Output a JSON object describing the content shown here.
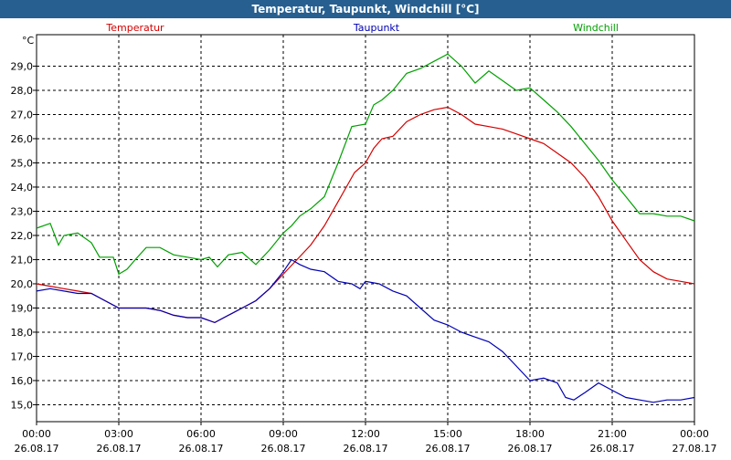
{
  "window": {
    "title": "Temperatur, Taupunkt, Windchill [°C]"
  },
  "chart_data": {
    "type": "line",
    "ylabel": "°C",
    "ylim": [
      14.3,
      30.3
    ],
    "yticks": [
      "15,0",
      "16,0",
      "17,0",
      "18,0",
      "19,0",
      "20,0",
      "21,0",
      "22,0",
      "23,0",
      "24,0",
      "25,0",
      "26,0",
      "27,0",
      "28,0",
      "29,0"
    ],
    "xticks": [
      {
        "time": "00:00",
        "date": "26.08.17"
      },
      {
        "time": "03:00",
        "date": "26.08.17"
      },
      {
        "time": "06:00",
        "date": "26.08.17"
      },
      {
        "time": "09:00",
        "date": "26.08.17"
      },
      {
        "time": "12:00",
        "date": "26.08.17"
      },
      {
        "time": "15:00",
        "date": "26.08.17"
      },
      {
        "time": "18:00",
        "date": "26.08.17"
      },
      {
        "time": "21:00",
        "date": "26.08.17"
      },
      {
        "time": "00:00",
        "date": "27.08.17"
      }
    ],
    "grid": true,
    "series": [
      {
        "name": "Temperatur",
        "color": "#d40000",
        "points": [
          [
            0,
            20.0
          ],
          [
            0.5,
            19.9
          ],
          [
            1,
            19.8
          ],
          [
            1.5,
            19.7
          ],
          [
            2,
            19.6
          ],
          [
            2.5,
            19.3
          ],
          [
            3,
            19.0
          ],
          [
            3.5,
            19.0
          ],
          [
            4,
            19.0
          ],
          [
            4.5,
            18.9
          ],
          [
            5,
            18.7
          ],
          [
            5.5,
            18.6
          ],
          [
            6,
            18.6
          ],
          [
            6.5,
            18.4
          ],
          [
            7,
            18.7
          ],
          [
            7.5,
            19.0
          ],
          [
            8,
            19.3
          ],
          [
            8.5,
            19.8
          ],
          [
            9,
            20.4
          ],
          [
            9.5,
            21.0
          ],
          [
            10,
            21.6
          ],
          [
            10.5,
            22.4
          ],
          [
            11,
            23.4
          ],
          [
            11.3,
            24.0
          ],
          [
            11.6,
            24.6
          ],
          [
            12,
            25.0
          ],
          [
            12.3,
            25.6
          ],
          [
            12.6,
            26.0
          ],
          [
            13,
            26.1
          ],
          [
            13.5,
            26.7
          ],
          [
            14,
            27.0
          ],
          [
            14.5,
            27.2
          ],
          [
            15,
            27.3
          ],
          [
            15.5,
            27.0
          ],
          [
            16,
            26.6
          ],
          [
            16.5,
            26.5
          ],
          [
            17,
            26.4
          ],
          [
            17.5,
            26.2
          ],
          [
            18,
            26.0
          ],
          [
            18.5,
            25.8
          ],
          [
            19,
            25.4
          ],
          [
            19.5,
            25.0
          ],
          [
            20,
            24.4
          ],
          [
            20.5,
            23.6
          ],
          [
            21,
            22.6
          ],
          [
            21.5,
            21.8
          ],
          [
            22,
            21.0
          ],
          [
            22.5,
            20.5
          ],
          [
            23,
            20.2
          ],
          [
            23.5,
            20.1
          ],
          [
            24,
            20.0
          ]
        ]
      },
      {
        "name": "Taupunkt",
        "color": "#0000b4",
        "points": [
          [
            0,
            19.7
          ],
          [
            0.5,
            19.8
          ],
          [
            1,
            19.7
          ],
          [
            1.5,
            19.6
          ],
          [
            2,
            19.6
          ],
          [
            2.5,
            19.3
          ],
          [
            3,
            19.0
          ],
          [
            3.5,
            19.0
          ],
          [
            4,
            19.0
          ],
          [
            4.5,
            18.9
          ],
          [
            5,
            18.7
          ],
          [
            5.5,
            18.6
          ],
          [
            6,
            18.6
          ],
          [
            6.5,
            18.4
          ],
          [
            7,
            18.7
          ],
          [
            7.5,
            19.0
          ],
          [
            8,
            19.3
          ],
          [
            8.5,
            19.8
          ],
          [
            9,
            20.5
          ],
          [
            9.3,
            21.0
          ],
          [
            9.6,
            20.8
          ],
          [
            10,
            20.6
          ],
          [
            10.5,
            20.5
          ],
          [
            11,
            20.1
          ],
          [
            11.5,
            20.0
          ],
          [
            11.8,
            19.8
          ],
          [
            12,
            20.1
          ],
          [
            12.5,
            20.0
          ],
          [
            13,
            19.7
          ],
          [
            13.5,
            19.5
          ],
          [
            14,
            19.0
          ],
          [
            14.5,
            18.5
          ],
          [
            15,
            18.3
          ],
          [
            15.5,
            18.0
          ],
          [
            16,
            17.8
          ],
          [
            16.5,
            17.6
          ],
          [
            17,
            17.2
          ],
          [
            17.5,
            16.6
          ],
          [
            18,
            16.0
          ],
          [
            18.5,
            16.1
          ],
          [
            19,
            15.9
          ],
          [
            19.3,
            15.3
          ],
          [
            19.6,
            15.2
          ],
          [
            20,
            15.5
          ],
          [
            20.5,
            15.9
          ],
          [
            21,
            15.6
          ],
          [
            21.5,
            15.3
          ],
          [
            22,
            15.2
          ],
          [
            22.5,
            15.1
          ],
          [
            23,
            15.2
          ],
          [
            23.5,
            15.2
          ],
          [
            24,
            15.3
          ]
        ]
      },
      {
        "name": "Windchill",
        "color": "#00a000",
        "points": [
          [
            0,
            22.3
          ],
          [
            0.5,
            22.5
          ],
          [
            0.8,
            21.6
          ],
          [
            1,
            22.0
          ],
          [
            1.5,
            22.1
          ],
          [
            2,
            21.7
          ],
          [
            2.3,
            21.1
          ],
          [
            2.8,
            21.1
          ],
          [
            3,
            20.4
          ],
          [
            3.3,
            20.6
          ],
          [
            3.6,
            21.0
          ],
          [
            4,
            21.5
          ],
          [
            4.5,
            21.5
          ],
          [
            5,
            21.2
          ],
          [
            5.5,
            21.1
          ],
          [
            6,
            21.0
          ],
          [
            6.3,
            21.1
          ],
          [
            6.6,
            20.7
          ],
          [
            7,
            21.2
          ],
          [
            7.5,
            21.3
          ],
          [
            8,
            20.8
          ],
          [
            8.5,
            21.4
          ],
          [
            9,
            22.1
          ],
          [
            9.3,
            22.4
          ],
          [
            9.6,
            22.8
          ],
          [
            10,
            23.1
          ],
          [
            10.5,
            23.6
          ],
          [
            11,
            25.0
          ],
          [
            11.5,
            26.5
          ],
          [
            12,
            26.6
          ],
          [
            12.3,
            27.4
          ],
          [
            12.6,
            27.6
          ],
          [
            13,
            28.0
          ],
          [
            13.5,
            28.7
          ],
          [
            14,
            28.9
          ],
          [
            14.5,
            29.2
          ],
          [
            15,
            29.5
          ],
          [
            15.5,
            29.0
          ],
          [
            16,
            28.3
          ],
          [
            16.5,
            28.8
          ],
          [
            17,
            28.4
          ],
          [
            17.5,
            28.0
          ],
          [
            18,
            28.1
          ],
          [
            18.5,
            27.6
          ],
          [
            19,
            27.1
          ],
          [
            19.5,
            26.5
          ],
          [
            20,
            25.8
          ],
          [
            20.5,
            25.1
          ],
          [
            21,
            24.3
          ],
          [
            21.5,
            23.6
          ],
          [
            22,
            22.9
          ],
          [
            22.5,
            22.9
          ],
          [
            23,
            22.8
          ],
          [
            23.5,
            22.8
          ],
          [
            24,
            22.6
          ]
        ]
      }
    ]
  }
}
